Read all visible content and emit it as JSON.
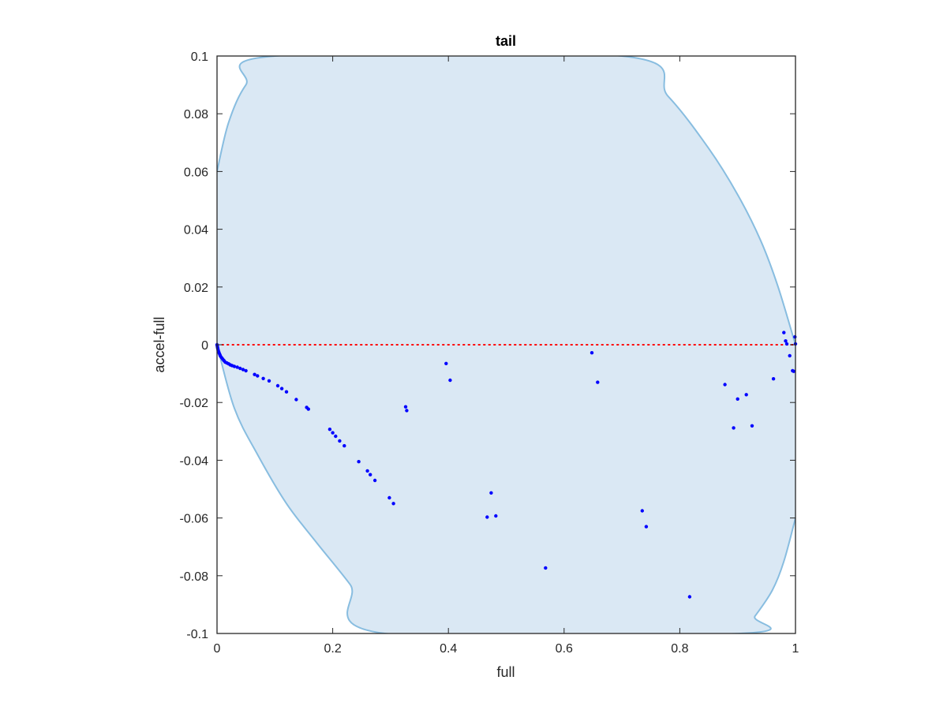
{
  "chart_data": {
    "type": "scatter",
    "title": "tail",
    "xlabel": "full",
    "ylabel": "accel-full",
    "xlim": [
      0,
      1
    ],
    "ylim": [
      -0.1,
      0.1
    ],
    "xticks": [
      0,
      0.2,
      0.4,
      0.6,
      0.8,
      1
    ],
    "xtick_labels": [
      "0",
      "0.2",
      "0.4",
      "0.6",
      "0.8",
      "1"
    ],
    "yticks": [
      -0.1,
      -0.08,
      -0.06,
      -0.04,
      -0.02,
      0,
      0.02,
      0.04,
      0.06,
      0.08,
      0.1
    ],
    "ytick_labels": [
      "-0.1",
      "-0.08",
      "-0.06",
      "-0.04",
      "-0.02",
      "0",
      "0.02",
      "0.04",
      "0.06",
      "0.08",
      "0.1"
    ],
    "grid": false,
    "reference_line": {
      "y": 0,
      "style": "dotted",
      "color": "#ff0000"
    },
    "region": {
      "fill": "#dae8f4",
      "stroke": "#88bde0",
      "description_points": {
        "upper": [
          [
            0,
            0.06
          ],
          [
            0.02,
            0.077
          ],
          [
            0.05,
            0.09
          ],
          [
            0.1,
            0.1
          ],
          [
            0.7,
            0.1
          ],
          [
            0.78,
            0.086
          ],
          [
            0.85,
            0.068
          ],
          [
            0.9,
            0.052
          ],
          [
            0.94,
            0.036
          ],
          [
            0.97,
            0.02
          ],
          [
            1,
            0
          ]
        ],
        "lower": [
          [
            0,
            0
          ],
          [
            0.03,
            -0.022
          ],
          [
            0.07,
            -0.038
          ],
          [
            0.12,
            -0.055
          ],
          [
            0.17,
            -0.068
          ],
          [
            0.23,
            -0.083
          ],
          [
            0.29,
            -0.1
          ],
          [
            0.905,
            -0.1
          ],
          [
            0.93,
            -0.094
          ],
          [
            0.96,
            -0.085
          ],
          [
            0.98,
            -0.075
          ],
          [
            1,
            -0.06
          ]
        ]
      }
    },
    "series": [
      {
        "color": "#0000ff",
        "points": [
          [
            0.0,
            0.0
          ],
          [
            0.0005,
            -0.0005
          ],
          [
            0.001,
            -0.001
          ],
          [
            0.0015,
            -0.0015
          ],
          [
            0.002,
            -0.002
          ],
          [
            0.003,
            -0.0025
          ],
          [
            0.004,
            -0.003
          ],
          [
            0.005,
            -0.0035
          ],
          [
            0.006,
            -0.004
          ],
          [
            0.008,
            -0.0045
          ],
          [
            0.01,
            -0.005
          ],
          [
            0.012,
            -0.0055
          ],
          [
            0.014,
            -0.006
          ],
          [
            0.017,
            -0.0063
          ],
          [
            0.02,
            -0.0066
          ],
          [
            0.023,
            -0.007
          ],
          [
            0.026,
            -0.0072
          ],
          [
            0.03,
            -0.0075
          ],
          [
            0.035,
            -0.0078
          ],
          [
            0.04,
            -0.0082
          ],
          [
            0.045,
            -0.0086
          ],
          [
            0.05,
            -0.009
          ],
          [
            0.065,
            -0.0103
          ],
          [
            0.07,
            -0.0108
          ],
          [
            0.08,
            -0.0117
          ],
          [
            0.09,
            -0.0125
          ],
          [
            0.105,
            -0.0142
          ],
          [
            0.112,
            -0.0152
          ],
          [
            0.12,
            -0.0163
          ],
          [
            0.137,
            -0.019
          ],
          [
            0.155,
            -0.0217
          ],
          [
            0.158,
            -0.0223
          ],
          [
            0.195,
            -0.0293
          ],
          [
            0.2,
            -0.0305
          ],
          [
            0.205,
            -0.0317
          ],
          [
            0.212,
            -0.0333
          ],
          [
            0.22,
            -0.035
          ],
          [
            0.245,
            -0.0405
          ],
          [
            0.26,
            -0.0437
          ],
          [
            0.265,
            -0.045
          ],
          [
            0.273,
            -0.047
          ],
          [
            0.298,
            -0.053
          ],
          [
            0.305,
            -0.055
          ],
          [
            0.326,
            -0.0215
          ],
          [
            0.328,
            -0.0228
          ],
          [
            0.396,
            -0.0065
          ],
          [
            0.403,
            -0.0123
          ],
          [
            0.467,
            -0.0597
          ],
          [
            0.474,
            -0.0513
          ],
          [
            0.482,
            -0.0593
          ],
          [
            0.568,
            -0.0773
          ],
          [
            0.648,
            -0.0028
          ],
          [
            0.658,
            -0.013
          ],
          [
            0.735,
            -0.0575
          ],
          [
            0.742,
            -0.063
          ],
          [
            0.817,
            -0.0873
          ],
          [
            0.878,
            -0.0138
          ],
          [
            0.893,
            -0.0288
          ],
          [
            0.9,
            -0.0188
          ],
          [
            0.915,
            -0.0173
          ],
          [
            0.925,
            -0.0281
          ],
          [
            0.962,
            -0.0118
          ],
          [
            0.98,
            0.0042
          ],
          [
            0.983,
            0.0013
          ],
          [
            0.985,
            0.0003
          ],
          [
            0.99,
            -0.0038
          ],
          [
            0.995,
            -0.009
          ],
          [
            0.997,
            -0.0092
          ],
          [
            0.999,
            0.0027
          ],
          [
            1.0,
            0.0003
          ]
        ]
      }
    ]
  }
}
